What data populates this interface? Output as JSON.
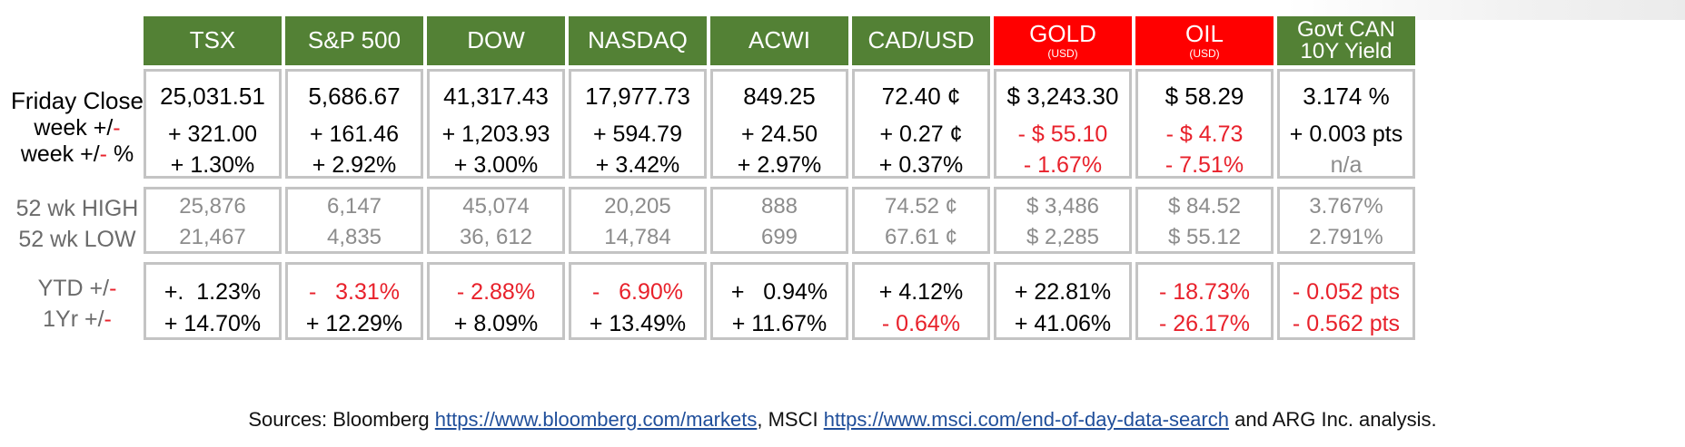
{
  "colors": {
    "header_green": "#538135",
    "header_red": "#ff0000",
    "negative": "#e8212b",
    "muted": "#8c8c8c",
    "border": "#c4c4c4",
    "link": "#1f4e9a"
  },
  "row_labels": {
    "friday_close": "Friday Close",
    "week_abs_prefix": "week +/",
    "week_pct_prefix": "week +/",
    "week_pct_suffix": " %",
    "dash": "-",
    "high": "52 wk HIGH",
    "low": "52 wk LOW",
    "ytd_prefix": "YTD +/",
    "yr_prefix": "1Yr +/"
  },
  "columns": [
    {
      "name": "TSX",
      "sub": "",
      "close": "25,031.51",
      "week": "+ 321.00",
      "week_pct": "+ 1.30%",
      "high": "25,876",
      "low": "21,467",
      "ytd": "+.  1.23%",
      "yr": "+ 14.70%"
    },
    {
      "name": "S&P 500",
      "sub": "",
      "close": "5,686.67",
      "week": "+ 161.46",
      "week_pct": "+ 2.92%",
      "high": "6,147",
      "low": "4,835",
      "ytd": "-   3.31%",
      "yr": "+ 12.29%"
    },
    {
      "name": "DOW",
      "sub": "",
      "close": "41,317.43",
      "week": "+ 1,203.93",
      "week_pct": "+ 3.00%",
      "high": "45,074",
      "low": "36, 612",
      "ytd": "- 2.88%",
      "yr": "+ 8.09%"
    },
    {
      "name": "NASDAQ",
      "sub": "",
      "close": "17,977.73",
      "week": "+ 594.79",
      "week_pct": "+ 3.42%",
      "high": "20,205",
      "low": "14,784",
      "ytd": "-   6.90%",
      "yr": "+ 13.49%"
    },
    {
      "name": "ACWI",
      "sub": "",
      "close": "849.25",
      "week": "+ 24.50",
      "week_pct": "+ 2.97%",
      "high": "888",
      "low": "699",
      "ytd": "+   0.94%",
      "yr": "+ 11.67%"
    },
    {
      "name": "CAD/USD",
      "sub": "",
      "close": "72.40 ¢",
      "week": "+ 0.27 ¢",
      "week_pct": "+ 0.37%",
      "high": "74.52 ¢",
      "low": "67.61 ¢",
      "ytd": "+ 4.12%",
      "yr": "- 0.64%"
    },
    {
      "name": "GOLD",
      "sub": "(USD)",
      "close": "$ 3,243.30",
      "week": "- $ 55.10",
      "week_pct": "- 1.67%",
      "high": "$ 3,486",
      "low": "$ 2,285",
      "ytd": "+ 22.81%",
      "yr": "+ 41.06%"
    },
    {
      "name": "OIL",
      "sub": "(USD)",
      "close": "$ 58.29",
      "week": "- $ 4.73",
      "week_pct": "- 7.51%",
      "high": "$ 84.52",
      "low": "$ 55.12",
      "ytd": "- 18.73%",
      "yr": "- 26.17%"
    },
    {
      "name": "Govt CAN",
      "sub": "10Y Yield",
      "close": "3.174 %",
      "week": "+ 0.003 pts",
      "week_pct": "n/a",
      "high": "3.767%",
      "low": "2.791%",
      "ytd": "- 0.052 pts",
      "yr": "- 0.562 pts"
    }
  ],
  "sources": {
    "prefix": "Sources: Bloomberg ",
    "link1": "https://www.bloomberg.com/markets",
    "middle": ", MSCI ",
    "link2": "https://www.msci.com/end-of-day-data-search",
    "suffix": " and ARG Inc. analysis."
  }
}
